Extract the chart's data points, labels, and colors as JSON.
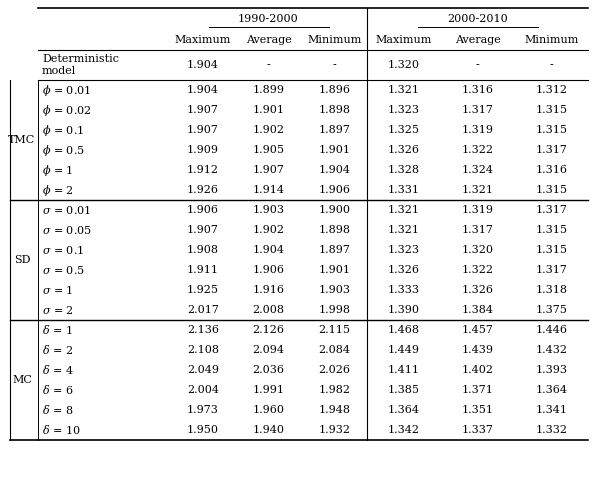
{
  "col_group_headers": [
    "1990-2000",
    "2000-2010"
  ],
  "col_headers": [
    "Maximum",
    "Average",
    "Minimum",
    "Maximum",
    "Average",
    "Minimum"
  ],
  "rows": [
    {
      "label": "Deterministic\nmodel",
      "group": "",
      "values": [
        "1.904",
        "-",
        "-",
        "1.320",
        "-",
        "-"
      ],
      "two_line": true
    },
    {
      "label": "$\\phi$ = 0.01",
      "group": "TMC",
      "values": [
        "1.904",
        "1.899",
        "1.896",
        "1.321",
        "1.316",
        "1.312"
      ]
    },
    {
      "label": "$\\phi$ = 0.02",
      "group": "TMC",
      "values": [
        "1.907",
        "1.901",
        "1.898",
        "1.323",
        "1.317",
        "1.315"
      ]
    },
    {
      "label": "$\\phi$ = 0.1",
      "group": "TMC",
      "values": [
        "1.907",
        "1.902",
        "1.897",
        "1.325",
        "1.319",
        "1.315"
      ]
    },
    {
      "label": "$\\phi$ = 0.5",
      "group": "TMC",
      "values": [
        "1.909",
        "1.905",
        "1.901",
        "1.326",
        "1.322",
        "1.317"
      ]
    },
    {
      "label": "$\\phi$ = 1",
      "group": "TMC",
      "values": [
        "1.912",
        "1.907",
        "1.904",
        "1.328",
        "1.324",
        "1.316"
      ]
    },
    {
      "label": "$\\phi$ = 2",
      "group": "TMC",
      "values": [
        "1.926",
        "1.914",
        "1.906",
        "1.331",
        "1.321",
        "1.315"
      ]
    },
    {
      "label": "$\\sigma$ = 0.01",
      "group": "SD",
      "values": [
        "1.906",
        "1.903",
        "1.900",
        "1.321",
        "1.319",
        "1.317"
      ]
    },
    {
      "label": "$\\sigma$ = 0.05",
      "group": "SD",
      "values": [
        "1.907",
        "1.902",
        "1.898",
        "1.321",
        "1.317",
        "1.315"
      ]
    },
    {
      "label": "$\\sigma$ = 0.1",
      "group": "SD",
      "values": [
        "1.908",
        "1.904",
        "1.897",
        "1.323",
        "1.320",
        "1.315"
      ]
    },
    {
      "label": "$\\sigma$ = 0.5",
      "group": "SD",
      "values": [
        "1.911",
        "1.906",
        "1.901",
        "1.326",
        "1.322",
        "1.317"
      ]
    },
    {
      "label": "$\\sigma$ = 1",
      "group": "SD",
      "values": [
        "1.925",
        "1.916",
        "1.903",
        "1.333",
        "1.326",
        "1.318"
      ]
    },
    {
      "label": "$\\sigma$ = 2",
      "group": "SD",
      "values": [
        "2.017",
        "2.008",
        "1.998",
        "1.390",
        "1.384",
        "1.375"
      ]
    },
    {
      "label": "$\\delta$ = 1",
      "group": "MC",
      "values": [
        "2.136",
        "2.126",
        "2.115",
        "1.468",
        "1.457",
        "1.446"
      ]
    },
    {
      "label": "$\\delta$ = 2",
      "group": "MC",
      "values": [
        "2.108",
        "2.094",
        "2.084",
        "1.449",
        "1.439",
        "1.432"
      ]
    },
    {
      "label": "$\\delta$ = 4",
      "group": "MC",
      "values": [
        "2.049",
        "2.036",
        "2.026",
        "1.411",
        "1.402",
        "1.393"
      ]
    },
    {
      "label": "$\\delta$ = 6",
      "group": "MC",
      "values": [
        "2.004",
        "1.991",
        "1.982",
        "1.385",
        "1.371",
        "1.364"
      ]
    },
    {
      "label": "$\\delta$ = 8",
      "group": "MC",
      "values": [
        "1.973",
        "1.960",
        "1.948",
        "1.364",
        "1.351",
        "1.341"
      ]
    },
    {
      "label": "$\\delta$ = 10",
      "group": "MC",
      "values": [
        "1.950",
        "1.940",
        "1.932",
        "1.342",
        "1.337",
        "1.332"
      ]
    }
  ],
  "bg_color": "#ffffff",
  "font_size": 8.0,
  "header_font_size": 8.0
}
